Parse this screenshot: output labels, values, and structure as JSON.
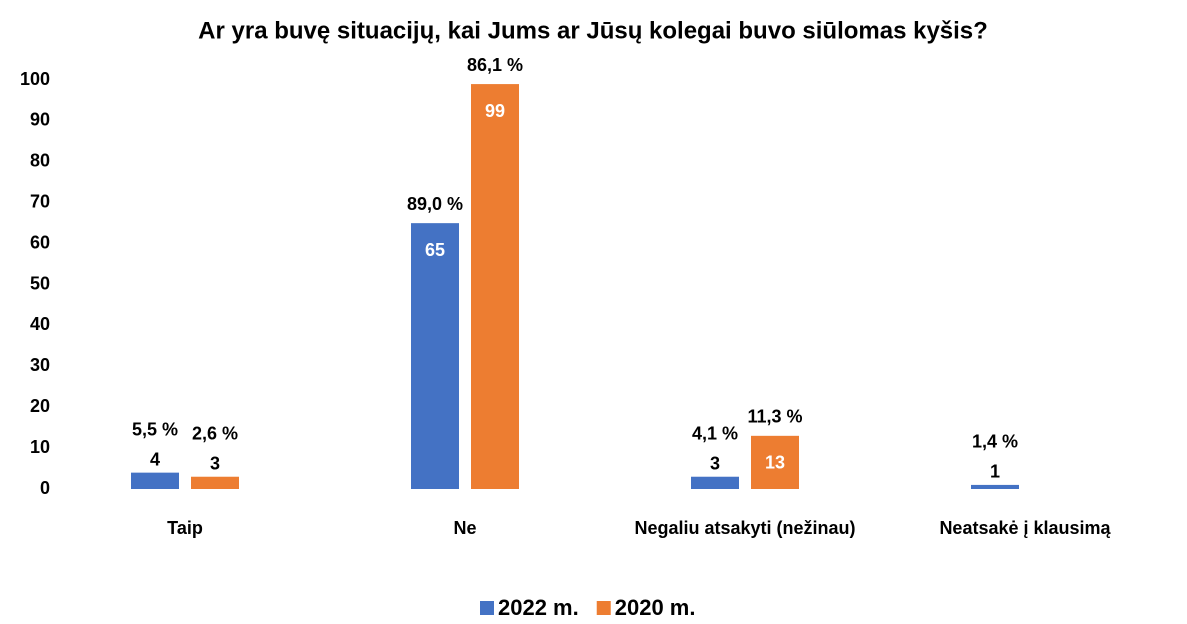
{
  "chart_data": {
    "type": "bar",
    "title": "Ar yra buvę situacijų, kai Jums ar Jūsų kolegai buvo siūlomas kyšis?",
    "categories": [
      "Taip",
      "Ne",
      "Negaliu atsakyti (nežinau)",
      "Neatsakė į klausimą"
    ],
    "series": [
      {
        "name": "2022 m.",
        "color": "#4472c4",
        "values": [
          4,
          65,
          3,
          1
        ],
        "percent_labels": [
          "5,5 %",
          "89,0 %",
          "4,1 %",
          "1,4 %"
        ]
      },
      {
        "name": "2020 m.",
        "color": "#ed7d31",
        "values": [
          3,
          99,
          13,
          null
        ],
        "percent_labels": [
          "2,6 %",
          "86,1 %",
          "11,3 %",
          null
        ]
      }
    ],
    "ylim": [
      0,
      100
    ],
    "yticks": [
      0,
      10,
      20,
      30,
      40,
      50,
      60,
      70,
      80,
      90,
      100
    ],
    "grid": false,
    "legend": "bottom"
  }
}
